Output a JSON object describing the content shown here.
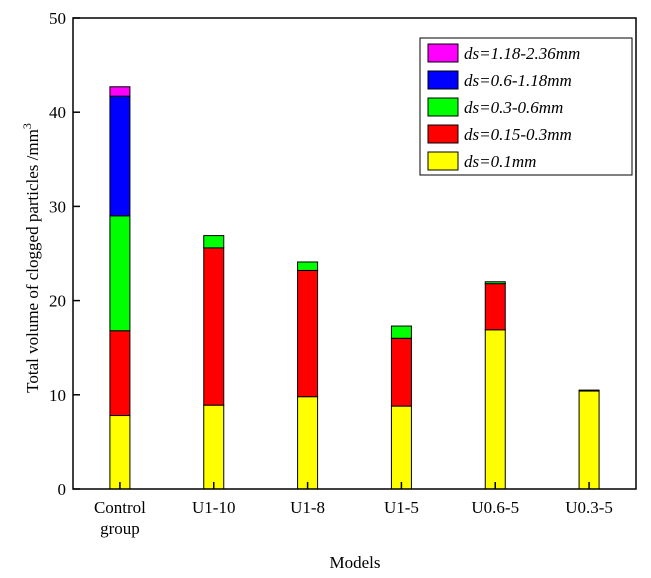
{
  "chart_data": {
    "type": "stacked_bar",
    "x_label": "Models",
    "y_label": "Total volume of clogged particles /mm",
    "y_label_superscript": "3",
    "categories": [
      "Control group",
      "U1-10",
      "U1-8",
      "U1-5",
      "U0.6-5",
      "U0.3-5"
    ],
    "series": [
      {
        "name": "ds=0.1mm",
        "color": "#ffff00",
        "values": [
          7.8,
          8.9,
          9.8,
          8.8,
          16.9,
          10.4
        ]
      },
      {
        "name": "ds=0.15-0.3mm",
        "color": "#ff0000",
        "values": [
          9.0,
          16.7,
          13.4,
          7.2,
          4.9,
          0.1
        ]
      },
      {
        "name": "ds=0.3-0.6mm",
        "color": "#00ff00",
        "values": [
          12.2,
          1.3,
          0.9,
          1.3,
          0.2,
          0
        ]
      },
      {
        "name": "ds=0.6-1.18mm",
        "color": "#0000ff",
        "values": [
          12.7,
          0,
          0,
          0,
          0,
          0
        ]
      },
      {
        "name": "ds=1.18-2.36mm",
        "color": "#ff00ff",
        "values": [
          1.0,
          0,
          0,
          0,
          0,
          0
        ]
      }
    ],
    "ylim": [
      0,
      50
    ],
    "yticks": [
      0,
      10,
      20,
      30,
      40,
      50
    ],
    "legend": "top-right"
  }
}
